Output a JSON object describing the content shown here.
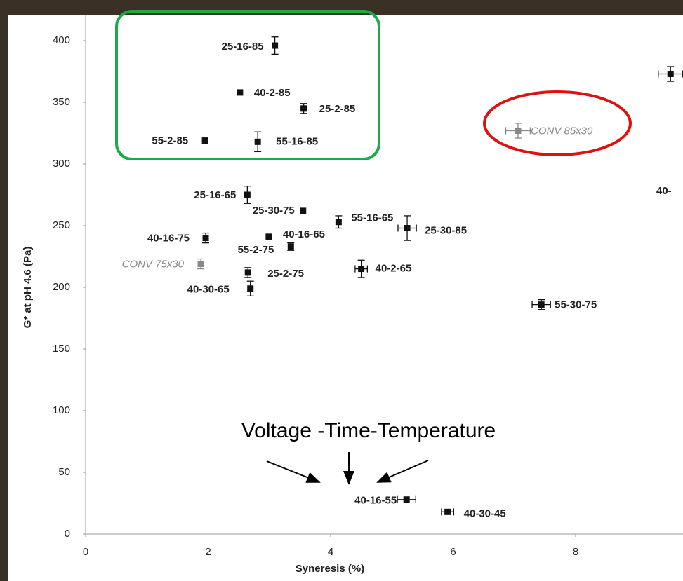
{
  "chart_data": {
    "type": "scatter",
    "x_label": "Syneresis (%)",
    "y_label": "G* at pH 4.6 (Pa)",
    "annotation": "Voltage -Time-Temperature",
    "edge_label": "40-",
    "xlim": [
      0,
      9.7
    ],
    "ylim": [
      0,
      420
    ],
    "xticks": [
      0,
      2,
      4,
      6,
      8
    ],
    "yticks": [
      0,
      50,
      100,
      150,
      200,
      250,
      300,
      350,
      400
    ],
    "labels": [
      "25-16-85",
      "40-2-85",
      "25-2-85",
      "55-2-85",
      "55-16-85",
      "CONV 85x30",
      null,
      "25-16-65",
      "25-30-75",
      "55-16-65",
      "40-16-75",
      "40-16-65",
      "55-2-75",
      "25-30-85",
      "CONV 75x30",
      "25-2-75",
      "40-2-65",
      "40-30-65",
      "55-30-75",
      "40-16-55",
      "40-30-45"
    ],
    "x": [
      3.09,
      2.52,
      3.56,
      1.95,
      2.81,
      7.06,
      9.55,
      2.64,
      3.55,
      4.13,
      1.96,
      2.99,
      3.35,
      5.25,
      1.88,
      2.65,
      4.5,
      2.69,
      7.44,
      5.24,
      5.91
    ],
    "values": [
      396,
      358,
      345,
      319,
      318,
      327,
      373,
      275,
      262,
      253,
      240,
      241,
      233,
      248,
      219,
      212,
      215,
      199,
      186,
      28,
      18
    ],
    "y_errors": [
      7,
      null,
      4,
      null,
      8,
      6,
      6,
      7,
      null,
      5,
      4,
      null,
      3,
      10,
      4,
      4,
      7,
      6,
      4,
      null,
      null
    ],
    "x_errors": [
      null,
      null,
      null,
      null,
      null,
      0.2,
      0.2,
      null,
      null,
      null,
      null,
      null,
      null,
      0.15,
      null,
      null,
      0.1,
      null,
      0.15,
      0.15,
      0.1
    ],
    "point_colors": [
      "#111",
      "#111",
      "#111",
      "#111",
      "#111",
      "#888",
      "#111",
      "#111",
      "#111",
      "#111",
      "#111",
      "#111",
      "#111",
      "#111",
      "#888",
      "#111",
      "#111",
      "#111",
      "#111",
      "#111",
      "#111"
    ]
  }
}
